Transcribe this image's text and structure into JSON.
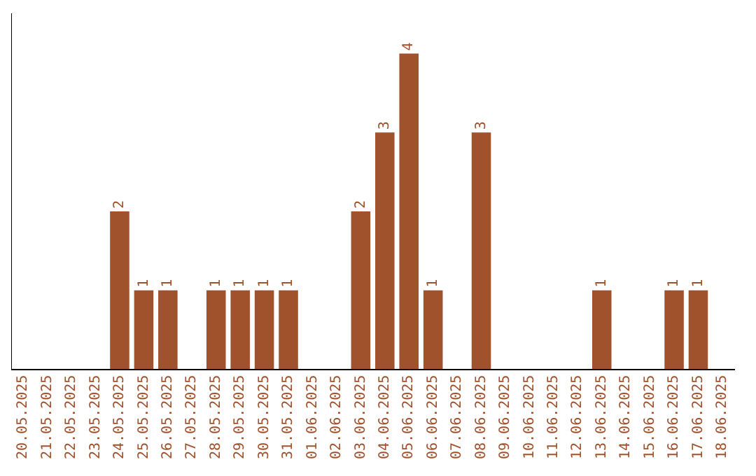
{
  "chart_data": {
    "type": "bar",
    "categories": [
      "20.05.2025",
      "21.05.2025",
      "22.05.2025",
      "23.05.2025",
      "24.05.2025",
      "25.05.2025",
      "26.05.2025",
      "27.05.2025",
      "28.05.2025",
      "29.05.2025",
      "30.05.2025",
      "31.05.2025",
      "01.06.2025",
      "02.06.2025",
      "03.06.2025",
      "04.06.2025",
      "05.06.2025",
      "06.06.2025",
      "07.06.2025",
      "08.06.2025",
      "09.06.2025",
      "10.06.2025",
      "11.06.2025",
      "12.06.2025",
      "13.06.2025",
      "14.06.2025",
      "15.06.2025",
      "16.06.2025",
      "17.06.2025",
      "18.06.2025"
    ],
    "values": [
      0,
      0,
      0,
      0,
      2,
      1,
      1,
      0,
      1,
      1,
      1,
      1,
      0,
      0,
      2,
      3,
      4,
      1,
      0,
      3,
      0,
      0,
      0,
      0,
      1,
      0,
      0,
      1,
      1,
      0
    ],
    "value_labels": [
      null,
      null,
      null,
      null,
      "2",
      "1",
      "1",
      null,
      "1",
      "1",
      "1",
      "1",
      null,
      null,
      "2",
      "3",
      "4",
      "1",
      null,
      "3",
      null,
      null,
      null,
      null,
      "1",
      null,
      null,
      "1",
      "1",
      null
    ],
    "color": "#a0522d",
    "grid": false,
    "legend": false
  }
}
